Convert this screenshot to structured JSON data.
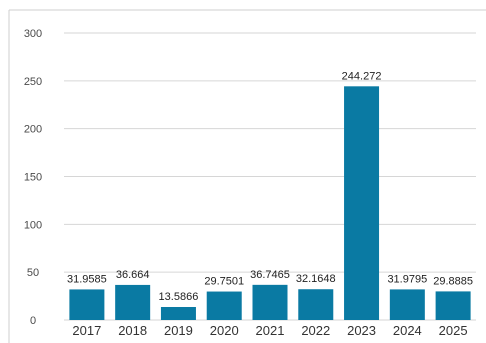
{
  "chart_data": {
    "type": "bar",
    "title": "",
    "xlabel": "",
    "ylabel": "",
    "categories": [
      "2017",
      "2018",
      "2019",
      "2020",
      "2021",
      "2022",
      "2023",
      "2024",
      "2025"
    ],
    "values": [
      31.9585,
      36.664,
      13.5866,
      29.7501,
      36.7465,
      32.1648,
      244.272,
      31.9795,
      29.8885
    ],
    "data_labels": [
      "31.9585",
      "36.664",
      "13.5866",
      "29.7501",
      "36.7465",
      "32.1648",
      "244.272",
      "31.9795",
      "29.8885"
    ],
    "y_ticks": [
      0,
      50,
      100,
      150,
      200,
      250,
      300
    ],
    "ylim": [
      0,
      300
    ],
    "grid": true,
    "legend": "none",
    "bar_color": "#0a7aa3",
    "grid_color": "#d6d6d6",
    "frame_color": "#cfcfcf"
  }
}
